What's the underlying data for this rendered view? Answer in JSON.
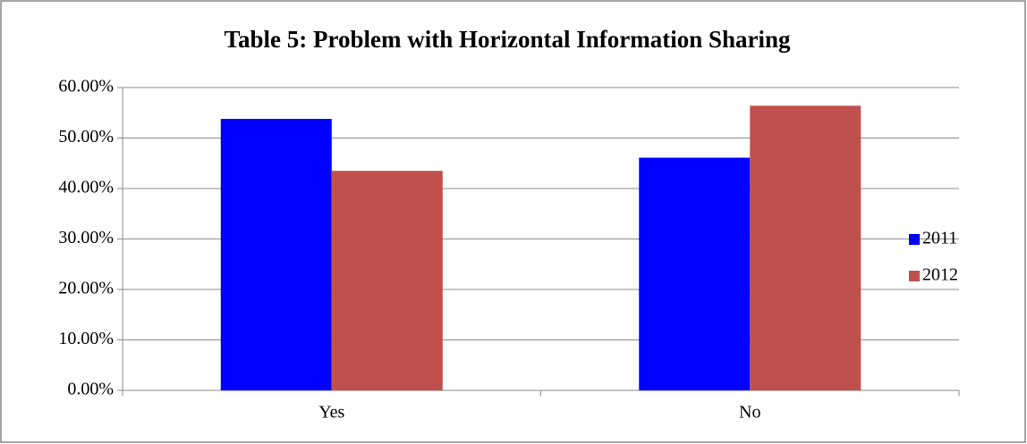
{
  "chart_data": {
    "type": "bar",
    "title": "Table 5:  Problem with Horizontal Information Sharing",
    "categories": [
      "Yes",
      "No"
    ],
    "series": [
      {
        "name": "2011",
        "color": "#0000ff",
        "values": [
          53.8,
          46.1
        ]
      },
      {
        "name": "2012",
        "color": "#c0504d",
        "values": [
          43.5,
          56.4
        ]
      }
    ],
    "ylim": [
      0,
      60
    ],
    "yticks": [
      {
        "value": 0,
        "label": "0.00%"
      },
      {
        "value": 10,
        "label": "10.00%"
      },
      {
        "value": 20,
        "label": "20.00%"
      },
      {
        "value": 30,
        "label": "30.00%"
      },
      {
        "value": 40,
        "label": "40.00%"
      },
      {
        "value": 50,
        "label": "50.00%"
      },
      {
        "value": 60,
        "label": "60.00%"
      }
    ],
    "grid": true,
    "legend": "right"
  }
}
